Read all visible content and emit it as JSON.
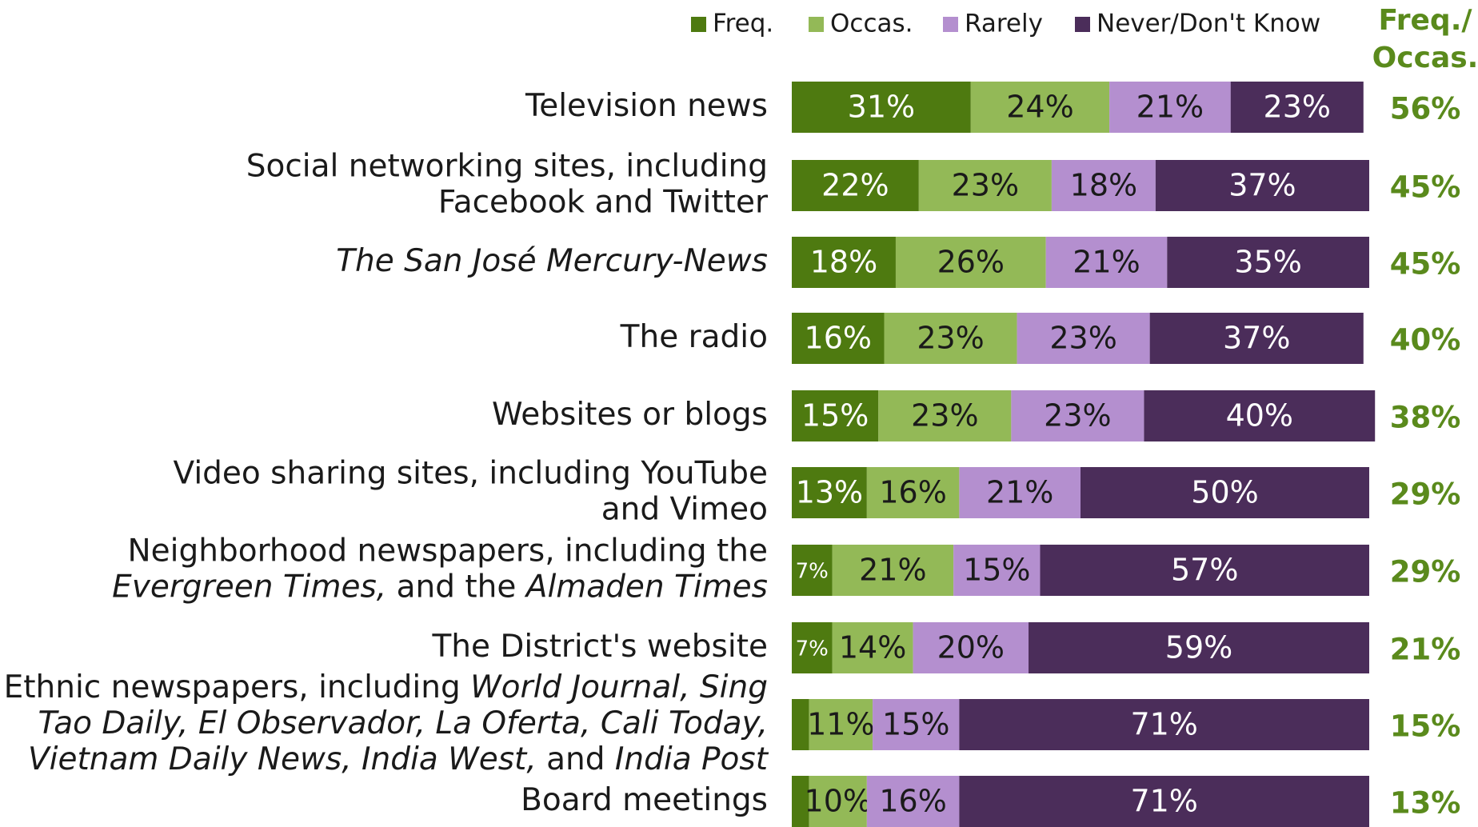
{
  "chart_data": {
    "type": "stacked-bar-horizontal",
    "categories": [
      [
        [
          {
            "text": "Television news"
          }
        ]
      ],
      [
        [
          {
            "text": "Social networking sites, including"
          }
        ],
        [
          {
            "text": "Facebook and Twitter"
          }
        ]
      ],
      [
        [
          {
            "text": "The San José Mercury-News",
            "italic": true
          }
        ]
      ],
      [
        [
          {
            "text": "The radio"
          }
        ]
      ],
      [
        [
          {
            "text": "Websites or blogs"
          }
        ]
      ],
      [
        [
          {
            "text": "Video sharing sites, including YouTube"
          }
        ],
        [
          {
            "text": "and Vimeo"
          }
        ]
      ],
      [
        [
          {
            "text": "Neighborhood newspapers, including the"
          }
        ],
        [
          {
            "text": "Evergreen Times,",
            "italic": true
          },
          {
            "text": " and the "
          },
          {
            "text": "Almaden Times",
            "italic": true
          }
        ]
      ],
      [
        [
          {
            "text": "The District's website"
          }
        ]
      ],
      [
        [
          {
            "text": "Ethnic newspapers, including "
          },
          {
            "text": "World Journal, Sing",
            "italic": true
          }
        ],
        [
          {
            "text": "Tao Daily, El Observador, La Oferta, Cali Today,",
            "italic": true
          }
        ],
        [
          {
            "text": "Vietnam Daily News, India West,",
            "italic": true
          },
          {
            "text": " and "
          },
          {
            "text": "India Post",
            "italic": true
          }
        ]
      ],
      [
        [
          {
            "text": "Board meetings"
          }
        ]
      ]
    ],
    "series": [
      {
        "name": "Freq.",
        "color": "#4e7a10",
        "label_color": "#ffffff",
        "values": [
          31,
          22,
          18,
          16,
          15,
          13,
          7,
          7,
          3,
          3
        ],
        "value_labels": [
          "31%",
          "22%",
          "18%",
          "16%",
          "15%",
          "13%",
          "7%",
          "7%",
          null,
          null
        ]
      },
      {
        "name": "Occas.",
        "color": "#93b957",
        "label_color": "#1a1a1a",
        "values": [
          24,
          23,
          26,
          23,
          23,
          16,
          21,
          14,
          11,
          10
        ],
        "value_labels": [
          "24%",
          "23%",
          "26%",
          "23%",
          "23%",
          "16%",
          "21%",
          "14%",
          "11%",
          "10%"
        ]
      },
      {
        "name": "Rarely",
        "color": "#b48fcf",
        "label_color": "#1a1a1a",
        "values": [
          21,
          18,
          21,
          23,
          23,
          21,
          15,
          20,
          15,
          16
        ],
        "value_labels": [
          "21%",
          "18%",
          "21%",
          "23%",
          "23%",
          "21%",
          "15%",
          "20%",
          "15%",
          "16%"
        ]
      },
      {
        "name": "Never/Don't Know",
        "color": "#4b2d5a",
        "label_color": "#ffffff",
        "values": [
          23,
          37,
          35,
          37,
          40,
          50,
          57,
          59,
          71,
          71
        ],
        "value_labels": [
          "23%",
          "37%",
          "35%",
          "37%",
          "40%",
          "50%",
          "57%",
          "59%",
          "71%",
          "71%"
        ]
      }
    ],
    "total": {
      "title": [
        "Freq./",
        "Occas."
      ],
      "color": "#5a8a1c",
      "values": [
        56,
        45,
        45,
        40,
        38,
        29,
        29,
        21,
        15,
        13
      ],
      "value_labels": [
        "56%",
        "45%",
        "45%",
        "40%",
        "38%",
        "29%",
        "29%",
        "21%",
        "15%",
        "13%"
      ]
    }
  }
}
